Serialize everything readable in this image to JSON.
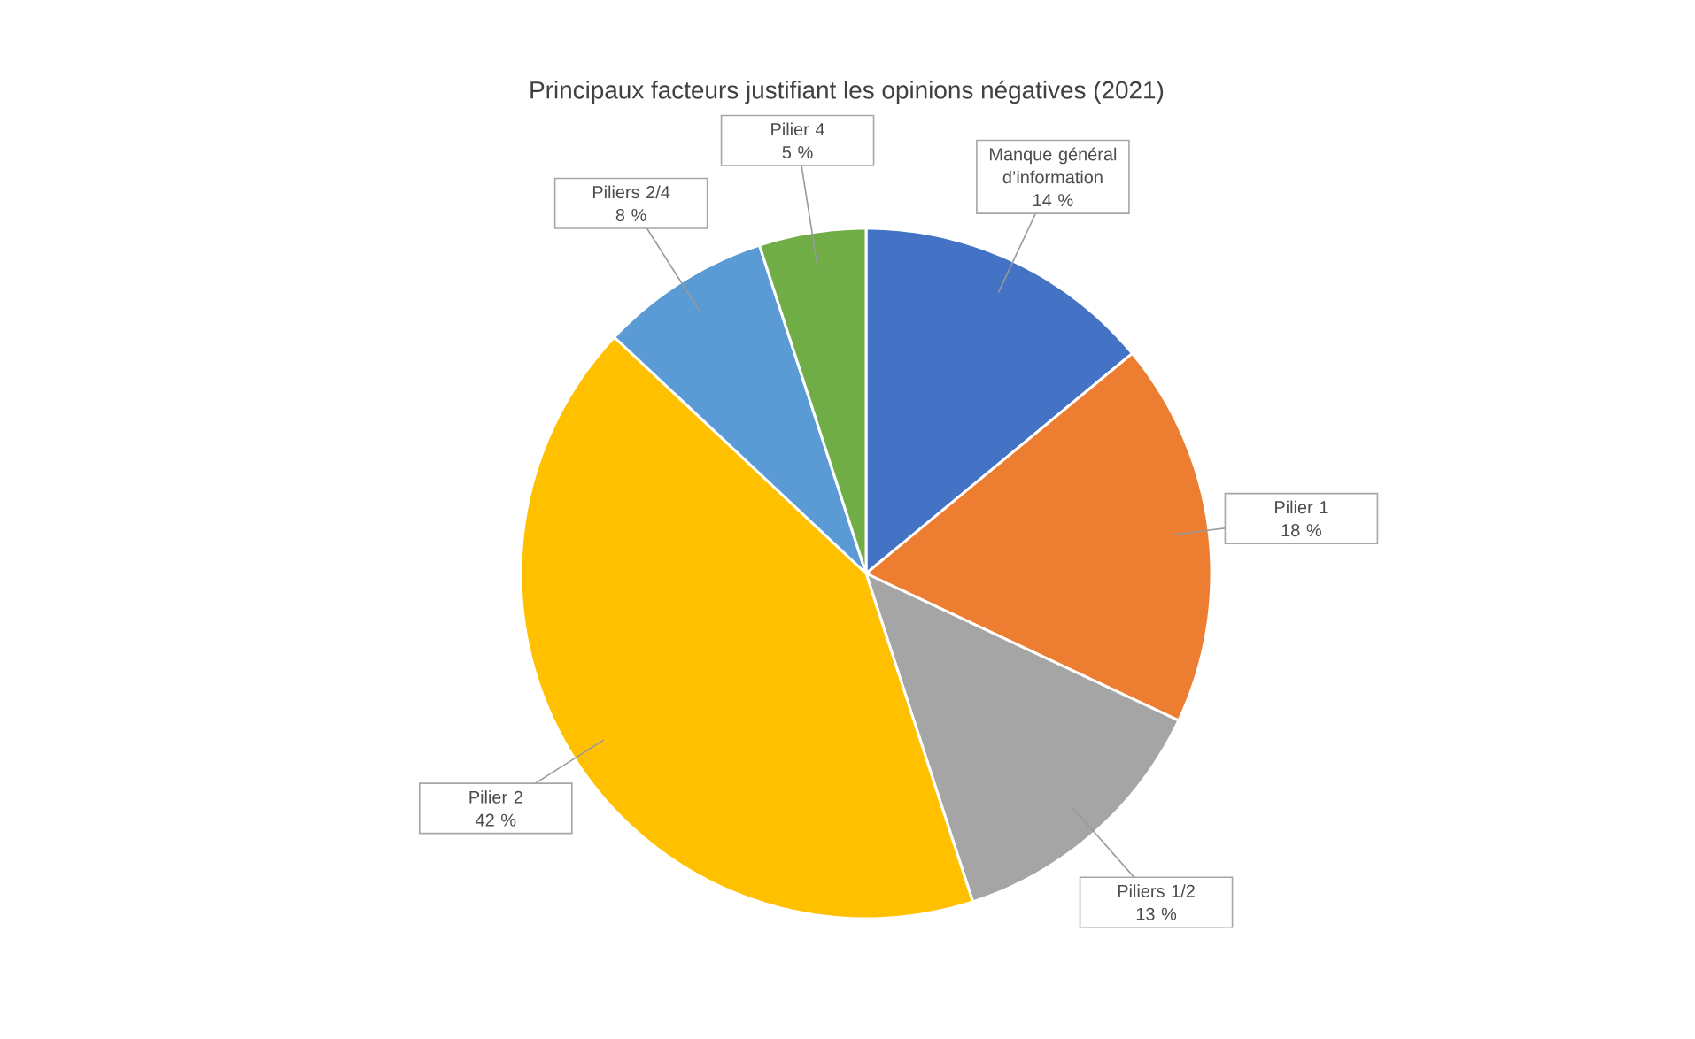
{
  "chart_data": {
    "type": "pie",
    "title": "Principaux facteurs justifiant les opinions négatives (2021)",
    "categories": [
      "Manque général d’information",
      "Pilier 1",
      "Piliers 1/2",
      "Pilier 2",
      "Piliers 2/4",
      "Pilier 4"
    ],
    "values": [
      14,
      18,
      13,
      42,
      8,
      5
    ],
    "colors": [
      "#4472c4",
      "#ed7d31",
      "#a5a5a5",
      "#ffc000",
      "#5b9bd5",
      "#70ad47"
    ],
    "value_labels": [
      "14 %",
      "18 %",
      "13 %",
      "42 %",
      "8 %",
      "5 %"
    ]
  }
}
